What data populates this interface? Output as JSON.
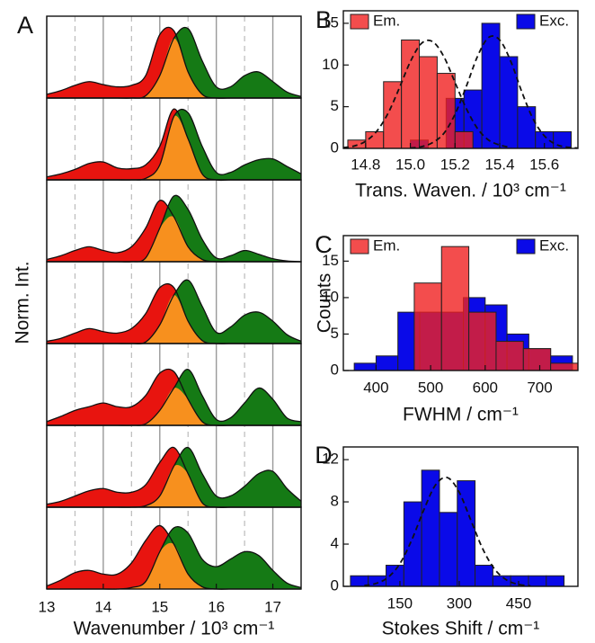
{
  "chart_data": [
    {
      "type": "spectra",
      "panel": "A",
      "xlabel": "Wavenumber / 10³ cm⁻¹",
      "ylabel": "Norm. Int.",
      "xlim": [
        13,
        17.5
      ],
      "ylim": [
        0,
        1
      ],
      "xticks": [
        13,
        14,
        15,
        16,
        17
      ],
      "minor_xticks": [
        13.5,
        14.5,
        15.5,
        16.5
      ],
      "emission_color": "#e8140f",
      "excitation_color": "#157a15",
      "overlap_color": "#f7901e",
      "x": [
        13,
        13.25,
        13.5,
        13.75,
        14,
        14.25,
        14.5,
        14.75,
        15,
        15.25,
        15.5,
        15.75,
        16,
        16.25,
        16.5,
        16.75,
        17,
        17.25,
        17.5
      ],
      "spectra": [
        {
          "emission": [
            0.05,
            0.1,
            0.17,
            0.22,
            0.18,
            0.15,
            0.17,
            0.3,
            0.85,
            0.9,
            0.35,
            0.05,
            0,
            0,
            0,
            0,
            0,
            0,
            0
          ],
          "excitation": [
            0,
            0,
            0,
            0,
            0,
            0,
            0,
            0.03,
            0.3,
            0.8,
            0.93,
            0.5,
            0.15,
            0.15,
            0.3,
            0.35,
            0.22,
            0.08,
            0.02
          ]
        },
        {
          "emission": [
            0.04,
            0.08,
            0.14,
            0.22,
            0.24,
            0.16,
            0.15,
            0.2,
            0.45,
            0.95,
            0.55,
            0.08,
            0,
            0,
            0,
            0,
            0,
            0,
            0
          ],
          "excitation": [
            0,
            0,
            0,
            0,
            0,
            0,
            0,
            0.02,
            0.2,
            0.85,
            0.9,
            0.45,
            0.1,
            0.1,
            0.2,
            0.27,
            0.28,
            0.18,
            0.08
          ]
        },
        {
          "emission": [
            0.03,
            0.08,
            0.15,
            0.2,
            0.15,
            0.12,
            0.2,
            0.45,
            0.82,
            0.6,
            0.2,
            0.03,
            0,
            0,
            0,
            0,
            0,
            0,
            0
          ],
          "excitation": [
            0,
            0,
            0,
            0,
            0,
            0,
            0,
            0.05,
            0.45,
            0.88,
            0.7,
            0.3,
            0.05,
            0.08,
            0.15,
            0.1,
            0.04,
            0.01,
            0
          ]
        },
        {
          "emission": [
            0.03,
            0.07,
            0.14,
            0.2,
            0.16,
            0.14,
            0.2,
            0.4,
            0.75,
            0.75,
            0.3,
            0.04,
            0,
            0,
            0,
            0,
            0,
            0,
            0
          ],
          "excitation": [
            0,
            0,
            0,
            0,
            0,
            0,
            0,
            0.02,
            0.25,
            0.65,
            0.85,
            0.5,
            0.15,
            0.22,
            0.38,
            0.42,
            0.3,
            0.12,
            0.03
          ]
        },
        {
          "emission": [
            0.05,
            0.12,
            0.2,
            0.25,
            0.3,
            0.25,
            0.25,
            0.4,
            0.7,
            0.72,
            0.35,
            0.05,
            0,
            0,
            0,
            0,
            0,
            0,
            0
          ],
          "excitation": [
            0,
            0,
            0,
            0,
            0,
            0,
            0,
            0.02,
            0.2,
            0.5,
            0.75,
            0.4,
            0.08,
            0.1,
            0.3,
            0.5,
            0.35,
            0.1,
            0.05
          ]
        },
        {
          "emission": [
            0.04,
            0.08,
            0.15,
            0.22,
            0.25,
            0.2,
            0.2,
            0.3,
            0.6,
            0.8,
            0.45,
            0.06,
            0,
            0,
            0,
            0,
            0,
            0,
            0
          ],
          "excitation": [
            0,
            0,
            0,
            0,
            0,
            0,
            0,
            0.02,
            0.15,
            0.55,
            0.8,
            0.45,
            0.15,
            0.15,
            0.28,
            0.45,
            0.48,
            0.25,
            0.08
          ]
        },
        {
          "emission": [
            0.04,
            0.12,
            0.22,
            0.25,
            0.2,
            0.2,
            0.35,
            0.65,
            0.85,
            0.6,
            0.2,
            0.03,
            0,
            0,
            0,
            0,
            0,
            0,
            0
          ],
          "excitation": [
            0,
            0,
            0,
            0,
            0,
            0,
            0.02,
            0.1,
            0.5,
            0.82,
            0.75,
            0.4,
            0.3,
            0.4,
            0.5,
            0.45,
            0.25,
            0.08,
            0.02
          ]
        }
      ]
    },
    {
      "type": "histogram",
      "panel": "B",
      "xlabel": "Trans. Waven. / 10³ cm⁻¹",
      "xlim": [
        14.7,
        15.75
      ],
      "ylim": [
        0,
        16.5
      ],
      "xticks": [
        14.8,
        {
          "value": 15,
          "label": "15.0"
        },
        15.2,
        15.4,
        15.6
      ],
      "yticks": [
        0,
        5,
        10,
        15
      ],
      "series": [
        {
          "name": "Exc.",
          "color": "#0a0ae8",
          "alpha": 1,
          "bins": [
            15.0,
            15.08,
            15.16,
            15.24,
            15.32,
            15.4,
            15.48,
            15.56,
            15.64,
            15.72
          ],
          "counts": [
            1,
            0,
            6,
            7,
            15,
            11,
            5,
            2,
            2
          ],
          "fit": {
            "x": [
              15.0,
              15.05,
              15.1,
              15.15,
              15.2,
              15.25,
              15.3,
              15.35,
              15.4,
              15.45,
              15.5,
              15.55,
              15.6,
              15.65,
              15.7,
              15.75
            ],
            "values": [
              0.05,
              0.2,
              0.7,
              1.8,
              4.1,
              7.4,
              11.0,
              13.3,
              13.0,
              10.4,
              6.7,
              3.5,
              1.5,
              0.5,
              0.15,
              0.04
            ]
          }
        },
        {
          "name": "Em.",
          "color": "#f02020",
          "alpha": 0.8,
          "bins": [
            14.72,
            14.8,
            14.88,
            14.96,
            15.04,
            15.12,
            15.2,
            15.28
          ],
          "counts": [
            1,
            2,
            8,
            13,
            11,
            9,
            2
          ],
          "fit": {
            "x": [
              14.7,
              14.75,
              14.8,
              14.85,
              14.9,
              14.95,
              15.0,
              15.05,
              15.1,
              15.15,
              15.2,
              15.25,
              15.3,
              15.35,
              15.4,
              15.45
            ],
            "values": [
              0.09,
              0.3,
              0.86,
              2.07,
              4.2,
              7.2,
              10.4,
              12.6,
              12.8,
              11.0,
              7.9,
              4.8,
              2.4,
              1.0,
              0.4,
              0.1
            ]
          }
        }
      ]
    },
    {
      "type": "histogram",
      "panel": "C",
      "xlabel": "FWHM / cm⁻¹",
      "ylabel": "Counts",
      "xlim": [
        340,
        770
      ],
      "ylim": [
        0,
        18.5
      ],
      "xticks": [
        400,
        500,
        600,
        700
      ],
      "yticks": [
        0,
        5,
        10,
        15
      ],
      "series": [
        {
          "name": "Exc.",
          "color": "#0a0ae8",
          "alpha": 1,
          "bins": [
            360,
            400,
            440,
            480,
            520,
            560,
            600,
            640,
            680,
            720,
            760
          ],
          "counts": [
            1,
            2,
            8,
            8,
            8,
            10,
            9,
            5,
            3,
            2
          ]
        },
        {
          "name": "Em.",
          "color": "#f02020",
          "alpha": 0.8,
          "bins": [
            470,
            520,
            570,
            620,
            670,
            720,
            770
          ],
          "counts": [
            12,
            17,
            8,
            4,
            3,
            1
          ]
        }
      ]
    },
    {
      "type": "histogram",
      "panel": "D",
      "xlabel": "Stokes Shift / cm⁻¹",
      "xlim": [
        7,
        600
      ],
      "ylim": [
        0,
        13.2
      ],
      "xticks": [
        150,
        300,
        450
      ],
      "yticks": [
        0,
        4,
        8,
        12
      ],
      "series": [
        {
          "color": "#0a0ae8",
          "alpha": 1,
          "bins": [
            25,
            70,
            115,
            160,
            205,
            250,
            295,
            340,
            385,
            430,
            475,
            520,
            565
          ],
          "counts": [
            1,
            1,
            2,
            8,
            11,
            7,
            10,
            2,
            1,
            1,
            1,
            1
          ],
          "fit": {
            "x": [
              60,
              90,
              120,
              150,
              180,
              210,
              240,
              270,
              300,
              330,
              360,
              390,
              420,
              450,
              480
            ],
            "values": [
              0.07,
              0.28,
              0.85,
              2.15,
              4.4,
              7.2,
              9.6,
              10.3,
              8.9,
              6.2,
              3.5,
              1.6,
              0.6,
              0.18,
              0.04
            ]
          }
        }
      ]
    }
  ]
}
